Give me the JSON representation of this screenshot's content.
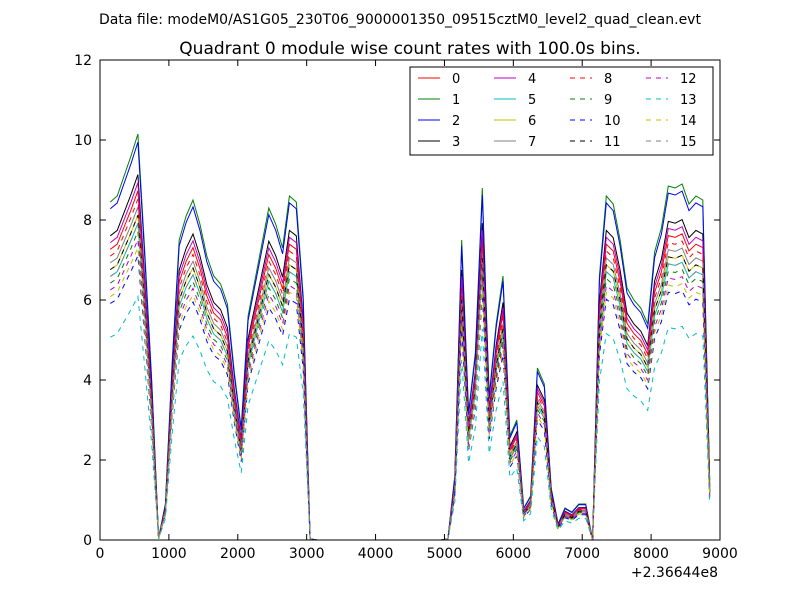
{
  "figure": {
    "suptitle": "Data file: modeM0/AS1G05_230T06_9000001350_09515cztM0_level2_quad_clean.evt"
  },
  "chart_data": {
    "type": "line",
    "title": "Quadrant 0 module wise count rates with 100.0s bins.",
    "xlabel": "",
    "ylabel": "",
    "offset_label": "+2.36644e8",
    "xlim": [
      0,
      9000
    ],
    "ylim": [
      0,
      12
    ],
    "xticks": [
      0,
      1000,
      2000,
      3000,
      4000,
      5000,
      6000,
      7000,
      8000,
      9000
    ],
    "yticks": [
      0,
      2,
      4,
      6,
      8,
      10,
      12
    ],
    "grid": false,
    "legend_position": "top-right",
    "legend_columns": 4,
    "x": [
      150,
      250,
      350,
      450,
      550,
      650,
      750,
      850,
      950,
      1050,
      1150,
      1250,
      1350,
      1450,
      1550,
      1650,
      1750,
      1850,
      1950,
      2050,
      2150,
      2250,
      2350,
      2450,
      2550,
      2650,
      2750,
      2850,
      2950,
      3050,
      3150,
      3250,
      3350,
      3450,
      3550,
      3650,
      3750,
      3850,
      3950,
      4050,
      4150,
      4250,
      4350,
      4450,
      4550,
      4650,
      4750,
      4850,
      4950,
      5050,
      5150,
      5250,
      5350,
      5450,
      5550,
      5650,
      5750,
      5850,
      5950,
      6050,
      6150,
      6250,
      6350,
      6450,
      6550,
      6650,
      6750,
      6850,
      6950,
      7050,
      7150,
      7250,
      7350,
      7450,
      7550,
      7650,
      7750,
      7850,
      7950,
      8050,
      8150,
      8250,
      8350,
      8450,
      8550,
      8650,
      8750,
      8850
    ],
    "series": [
      {
        "name": "0",
        "color": "#ff0000",
        "dash": "solid",
        "scale": 0.86
      },
      {
        "name": "1",
        "color": "#008000",
        "dash": "solid",
        "scale": 1.0
      },
      {
        "name": "2",
        "color": "#0000ff",
        "dash": "solid",
        "scale": 0.98
      },
      {
        "name": "3",
        "color": "#000000",
        "dash": "solid",
        "scale": 0.9
      },
      {
        "name": "4",
        "color": "#bf00bf",
        "dash": "solid",
        "scale": 0.88
      },
      {
        "name": "5",
        "color": "#00bfbf",
        "dash": "solid",
        "scale": 0.78
      },
      {
        "name": "6",
        "color": "#bfbf00",
        "dash": "solid",
        "scale": 0.8
      },
      {
        "name": "7",
        "color": "#808080",
        "dash": "solid",
        "scale": 0.82
      },
      {
        "name": "8",
        "color": "#ff0000",
        "dash": "dashed",
        "scale": 0.84
      },
      {
        "name": "9",
        "color": "#008000",
        "dash": "dashed",
        "scale": 0.76
      },
      {
        "name": "10",
        "color": "#0000ff",
        "dash": "dashed",
        "scale": 0.7
      },
      {
        "name": "11",
        "color": "#000000",
        "dash": "dashed",
        "scale": 0.8
      },
      {
        "name": "12",
        "color": "#bf00bf",
        "dash": "dashed",
        "scale": 0.74
      },
      {
        "name": "13",
        "color": "#00bfbf",
        "dash": "dashed",
        "scale": 0.6
      },
      {
        "name": "14",
        "color": "#bfbf00",
        "dash": "dashed",
        "scale": 0.72
      },
      {
        "name": "15",
        "color": "#808080",
        "dash": "dashed",
        "scale": 0.78
      }
    ],
    "base_profile": [
      8.45,
      8.6,
      9.1,
      9.6,
      10.15,
      7.2,
      4.0,
      0.05,
      0.9,
      4.5,
      7.5,
      8.1,
      8.5,
      7.9,
      7.1,
      6.6,
      6.4,
      5.9,
      4.2,
      2.8,
      5.6,
      6.5,
      7.4,
      8.3,
      7.9,
      7.3,
      8.6,
      8.45,
      6.1,
      0.03,
      0.0,
      0.0,
      0.0,
      0.0,
      0.0,
      0.0,
      0.0,
      0.0,
      0.0,
      0.0,
      0.0,
      0.0,
      0.0,
      0.0,
      0.0,
      0.0,
      0.0,
      0.0,
      0.0,
      0.03,
      1.6,
      7.5,
      3.2,
      4.7,
      8.8,
      3.6,
      5.4,
      6.6,
      2.6,
      3.0,
      0.8,
      1.1,
      4.3,
      3.9,
      1.3,
      0.4,
      0.8,
      0.7,
      0.9,
      0.9,
      0.0,
      6.6,
      8.6,
      8.4,
      7.5,
      6.3,
      6.0,
      5.8,
      5.4,
      7.2,
      7.8,
      8.85,
      8.8,
      8.9,
      8.4,
      8.6,
      8.5,
      1.5
    ]
  }
}
